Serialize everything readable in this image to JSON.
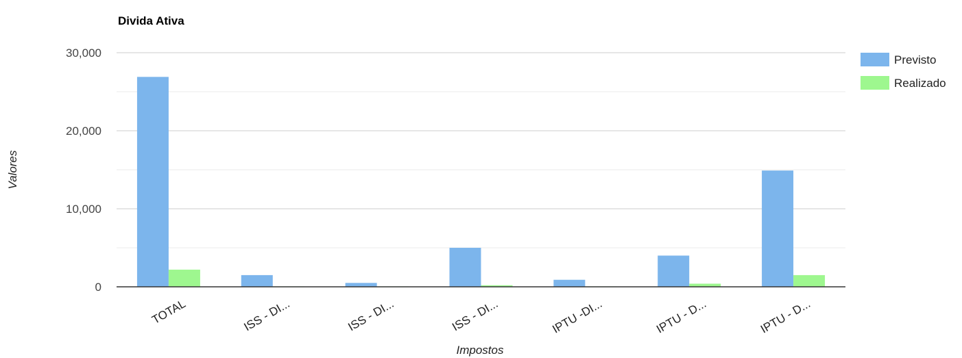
{
  "chart_data": {
    "type": "bar",
    "title": "Divida Ativa",
    "xlabel": "Impostos",
    "ylabel": "Valores",
    "categories": [
      "TOTAL",
      "ISS - DI...",
      "ISS - DI...",
      "ISS - DI...",
      "IPTU -DI...",
      "IPTU - D...",
      "IPTU - D..."
    ],
    "series": [
      {
        "name": "Previsto",
        "color": "#7cb5ec",
        "values": [
          26900,
          1500,
          500,
          5000,
          900,
          4000,
          14900
        ]
      },
      {
        "name": "Realizado",
        "color": "#9ef78f",
        "values": [
          2200,
          50,
          50,
          200,
          50,
          400,
          1500
        ]
      }
    ],
    "ylim": [
      0,
      30000
    ],
    "yticks": [
      0,
      10000,
      20000,
      30000
    ],
    "ytick_labels": [
      "0",
      "10,000",
      "20,000",
      "30,000"
    ],
    "minor_gridlines": [
      5000,
      15000,
      25000
    ],
    "grid": true,
    "legend_position": "right"
  }
}
